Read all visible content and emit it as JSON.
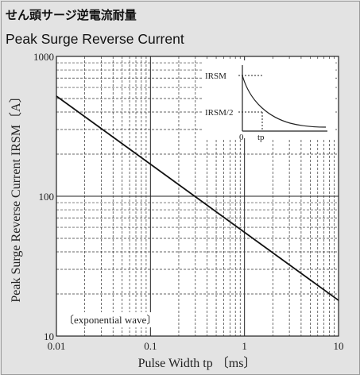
{
  "header": {
    "title_jp": "せん頭サージ逆電流耐量",
    "title_en": "Peak Surge Reverse Current"
  },
  "chart_data": {
    "type": "line",
    "x_scale": "log",
    "y_scale": "log",
    "xlim": [
      0.01,
      10
    ],
    "ylim": [
      10,
      1000
    ],
    "x_ticks": [
      "0.01",
      "0.1",
      "1",
      "10"
    ],
    "y_ticks": [
      "10",
      "100",
      "1000"
    ],
    "xlabel": "Pulse Width tp 〔ms〕",
    "ylabel": "Peak Surge Reverse Current IRSM〔A〕",
    "grid": true,
    "series": [
      {
        "x": [
          0.01,
          10
        ],
        "y": [
          520,
          18
        ]
      }
    ],
    "annotation": "〔exponential wave〕",
    "inset": {
      "labels": {
        "peak": "IRSM",
        "half": "IRSM/2",
        "origin": "0",
        "tp": "tp"
      }
    }
  }
}
